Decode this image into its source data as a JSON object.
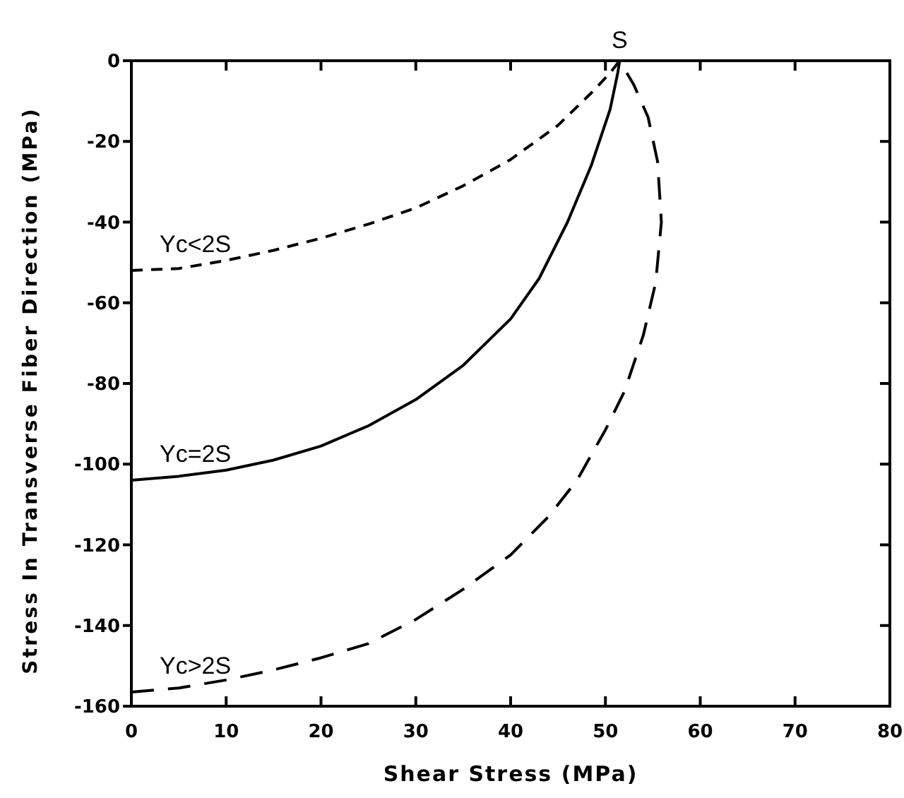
{
  "chart_data": {
    "type": "line",
    "xlabel": "Shear Stress (MPa)",
    "ylabel": "Stress In Transverse Fiber Direction (MPa)",
    "xlim": [
      0,
      80
    ],
    "ylim": [
      -160,
      0
    ],
    "xticks": [
      0,
      10,
      20,
      30,
      40,
      50,
      60,
      70,
      80
    ],
    "yticks": [
      -160,
      -140,
      -120,
      -100,
      -80,
      -60,
      -40,
      -20,
      0
    ],
    "series": [
      {
        "name": "Yc<2S",
        "color": "#000000",
        "line_style": "dashed",
        "x": [
          0,
          5,
          10,
          15,
          20,
          25,
          30,
          35,
          40,
          45,
          48.5,
          50.5,
          51.5
        ],
        "values": [
          -52,
          -51.5,
          -49.5,
          -47,
          -44,
          -40.5,
          -36.5,
          -31,
          -24.5,
          -16,
          -8,
          -3,
          0
        ]
      },
      {
        "name": "Yc=2S",
        "color": "#000000",
        "line_style": "solid",
        "x": [
          0,
          5,
          10,
          15,
          20,
          25,
          30,
          35,
          40,
          43,
          46,
          48.5,
          50.5,
          51.3,
          51.5
        ],
        "values": [
          -104,
          -103,
          -101.5,
          -99,
          -95.5,
          -90.5,
          -84,
          -75.5,
          -64,
          -54,
          -40,
          -26,
          -12,
          -3,
          0
        ]
      },
      {
        "name": "Yc>2S",
        "color": "#000000",
        "line_style": "dashed",
        "x": [
          0,
          5,
          10,
          15,
          20,
          25,
          30,
          35,
          40,
          44,
          47,
          50,
          52,
          54,
          55.3,
          55.9,
          55.5,
          54.5,
          53,
          51.5
        ],
        "values": [
          -156.5,
          -155.5,
          -153.5,
          -151,
          -148,
          -144.5,
          -138.5,
          -131,
          -122.5,
          -113,
          -104,
          -91.5,
          -82,
          -68,
          -55,
          -40,
          -25,
          -14,
          -6,
          0
        ]
      }
    ],
    "annotations": [
      {
        "text": "S",
        "x": 51.5,
        "y": 0
      }
    ]
  }
}
